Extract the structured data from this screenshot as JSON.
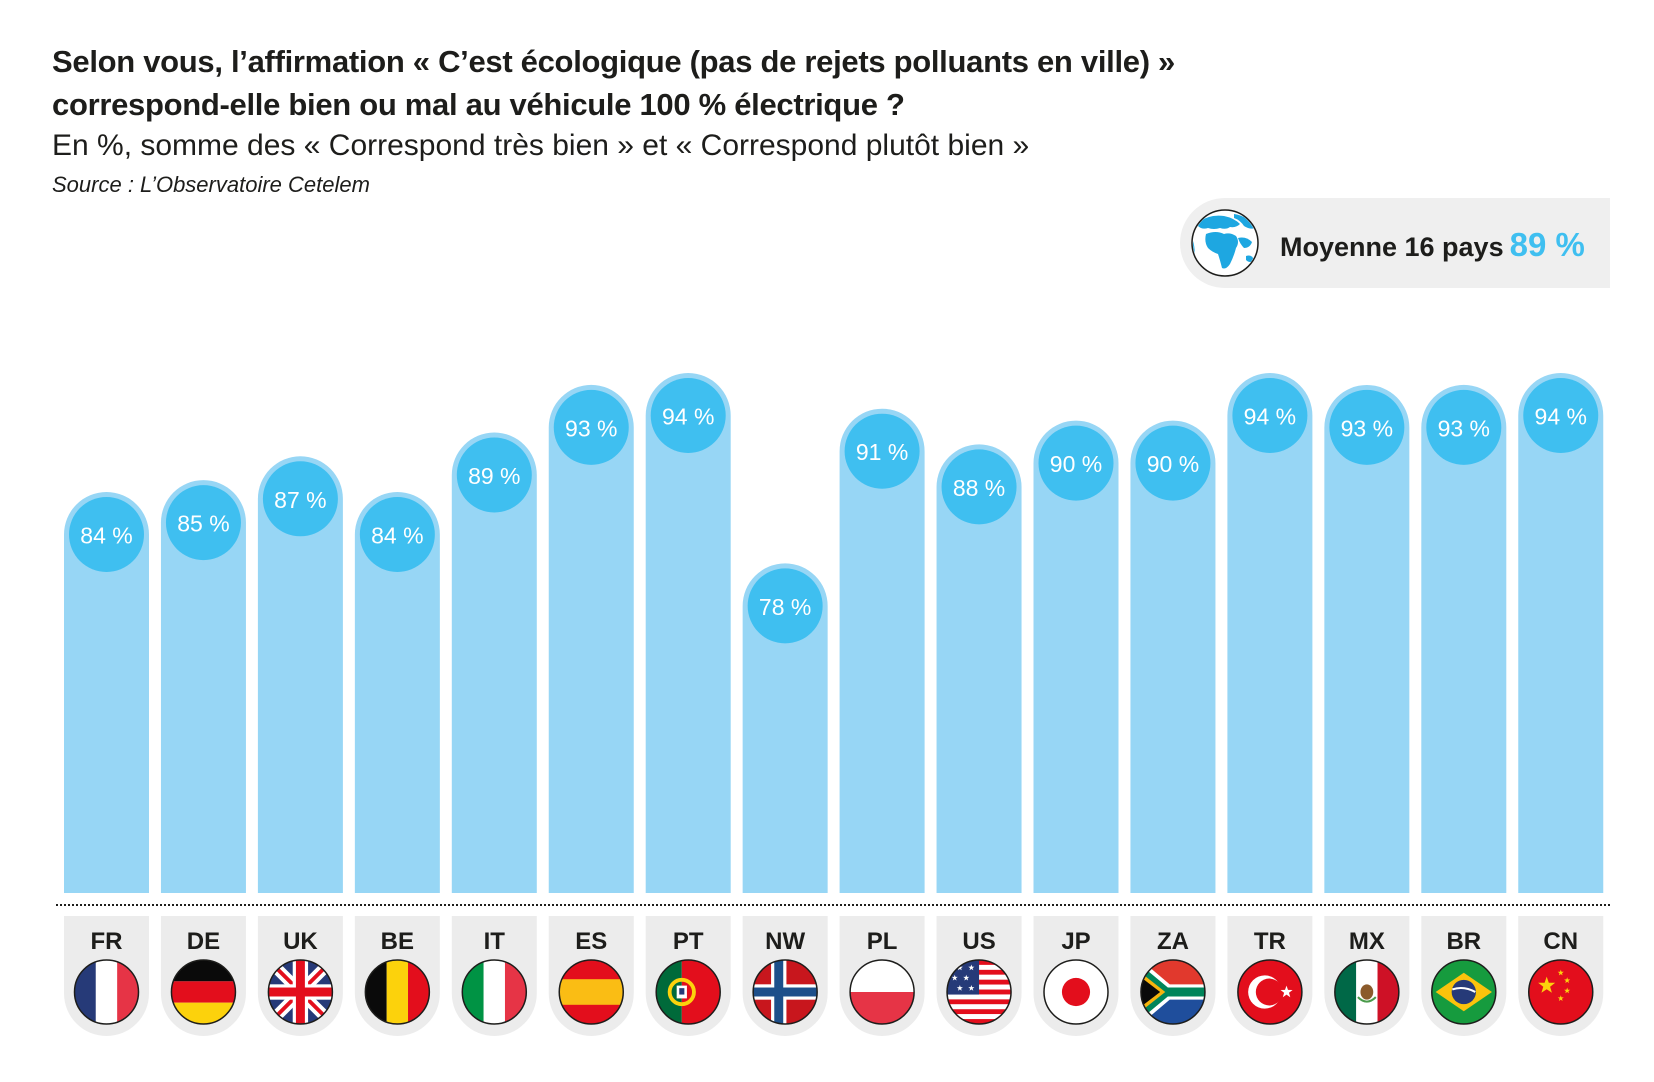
{
  "header": {
    "title_line1": "Selon vous, l’affirmation « C’est écologique (pas de rejets polluants en ville) »",
    "title_line2": "correspond-elle bien ou mal au véhicule 100 % électrique ?",
    "subtitle": "En %, somme des « Correspond très bien » et « Correspond plutôt bien »",
    "source": "Source : L’Observatoire Cetelem"
  },
  "average": {
    "icon": "globe-icon",
    "label": "Moyenne 16 pays",
    "value": "89 %"
  },
  "colors": {
    "bar": "#97d6f5",
    "label_circle": "#3fbff0",
    "label_text": "#ffffff",
    "tab_bg": "#ececec",
    "text": "#1d1d1b",
    "accent": "#3fbff0"
  },
  "chart_data": {
    "type": "bar",
    "title": "Selon vous, l’affirmation « C’est écologique (pas de rejets polluants en ville) » correspond-elle bien ou mal au véhicule 100 % électrique ?",
    "subtitle": "En %, somme des « Correspond très bien » et « Correspond plutôt bien »",
    "xlabel": "",
    "ylabel": "",
    "unit": "%",
    "grid": false,
    "legend": "none",
    "ylim": [
      0,
      100
    ],
    "categories": [
      "FR",
      "DE",
      "UK",
      "BE",
      "IT",
      "ES",
      "PT",
      "NW",
      "PL",
      "US",
      "JP",
      "ZA",
      "TR",
      "MX",
      "BR",
      "CN"
    ],
    "values": [
      84,
      85,
      87,
      84,
      89,
      93,
      94,
      78,
      91,
      88,
      90,
      90,
      94,
      93,
      93,
      94
    ],
    "data_labels": [
      "84 %",
      "85 %",
      "87 %",
      "84 %",
      "89 %",
      "93 %",
      "94 %",
      "78 %",
      "91 %",
      "88 %",
      "90 %",
      "90 %",
      "94 %",
      "93 %",
      "93 %",
      "94 %"
    ],
    "flags": [
      "flag-france",
      "flag-germany",
      "flag-uk",
      "flag-belgium",
      "flag-italy",
      "flag-spain",
      "flag-portugal",
      "flag-norway",
      "flag-poland",
      "flag-usa",
      "flag-japan",
      "flag-south-africa",
      "flag-turkey",
      "flag-mexico",
      "flag-brazil",
      "flag-china"
    ],
    "average": {
      "label": "Moyenne 16 pays",
      "value": 89
    }
  }
}
